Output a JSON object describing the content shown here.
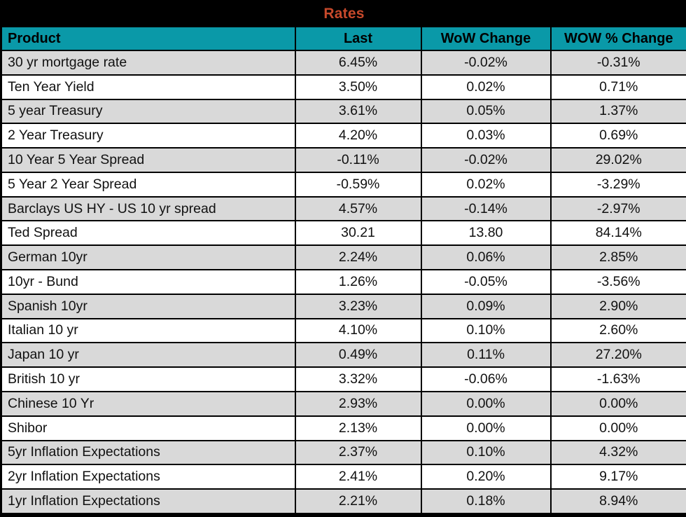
{
  "chart_data": {
    "type": "table",
    "title": "Rates",
    "columns": [
      "Product",
      "Last",
      "WoW Change",
      "WOW % Change"
    ],
    "rows": [
      [
        "30 yr mortgage rate",
        "6.45%",
        "-0.02%",
        "-0.31%"
      ],
      [
        "Ten Year Yield",
        "3.50%",
        "0.02%",
        "0.71%"
      ],
      [
        "5 year Treasury",
        "3.61%",
        "0.05%",
        "1.37%"
      ],
      [
        "2 Year Treasury",
        "4.20%",
        "0.03%",
        "0.69%"
      ],
      [
        "10 Year 5 Year Spread",
        "-0.11%",
        "-0.02%",
        "29.02%"
      ],
      [
        "5 Year 2 Year Spread",
        "-0.59%",
        "0.02%",
        "-3.29%"
      ],
      [
        "Barclays US HY - US 10 yr spread",
        "4.57%",
        "-0.14%",
        "-2.97%"
      ],
      [
        "Ted Spread",
        "30.21",
        "13.80",
        "84.14%"
      ],
      [
        "German 10yr",
        "2.24%",
        "0.06%",
        "2.85%"
      ],
      [
        "10yr - Bund",
        "1.26%",
        "-0.05%",
        "-3.56%"
      ],
      [
        "Spanish 10yr",
        "3.23%",
        "0.09%",
        "2.90%"
      ],
      [
        "Italian 10 yr",
        "4.10%",
        "0.10%",
        "2.60%"
      ],
      [
        "Japan 10 yr",
        "0.49%",
        "0.11%",
        "27.20%"
      ],
      [
        "British 10 yr",
        "3.32%",
        "-0.06%",
        "-1.63%"
      ],
      [
        "Chinese 10 Yr",
        "2.93%",
        "0.00%",
        "0.00%"
      ],
      [
        "Shibor",
        "2.13%",
        "0.00%",
        "0.00%"
      ],
      [
        "5yr Inflation Expectations",
        "2.37%",
        "0.10%",
        "4.32%"
      ],
      [
        "2yr Inflation Expectations",
        "2.41%",
        "0.20%",
        "9.17%"
      ],
      [
        "1yr Inflation Expectations",
        "2.21%",
        "0.18%",
        "8.94%"
      ]
    ]
  },
  "colors": {
    "title_bar_background": "#000000",
    "title_text_orange": "#C7492B",
    "header_teal": "#0A99A8",
    "row_alt_gray": "#D9D9D9",
    "row_white": "#FFFFFF",
    "grid_black": "#000000"
  }
}
